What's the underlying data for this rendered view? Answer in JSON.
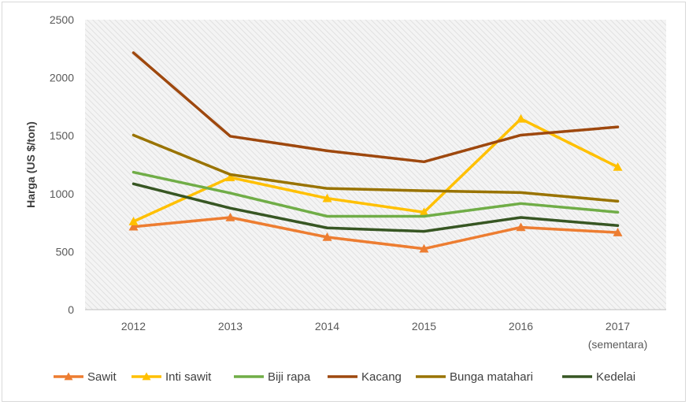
{
  "chart_data": {
    "type": "line",
    "title": "",
    "xlabel": "",
    "ylabel": "Harga (US $/ton)",
    "categories": [
      "2012",
      "2013",
      "2014",
      "2015",
      "2016",
      "2017"
    ],
    "category_sublabels": [
      "",
      "",
      "",
      "",
      "",
      "(sementara)"
    ],
    "ylim": [
      0,
      2500
    ],
    "yticks": [
      0,
      500,
      1000,
      1500,
      2000,
      2500
    ],
    "grid": false,
    "background": "hatched",
    "legend_position": "bottom",
    "series": [
      {
        "name": "Sawit",
        "color": "#ED7D31",
        "marker": "triangle",
        "values": [
          715,
          795,
          625,
          525,
          710,
          665
        ]
      },
      {
        "name": "Inti sawit",
        "color": "#FFC000",
        "marker": "triangle",
        "values": [
          760,
          1140,
          960,
          840,
          1645,
          1230
        ]
      },
      {
        "name": "Biji rapa",
        "color": "#70AD47",
        "marker": "none",
        "values": [
          1185,
          1005,
          805,
          805,
          915,
          840
        ]
      },
      {
        "name": "Kacang",
        "color": "#9E480E",
        "marker": "none",
        "values": [
          2215,
          1495,
          1370,
          1275,
          1505,
          1575
        ]
      },
      {
        "name": "Bunga matahari",
        "color": "#997300",
        "marker": "none",
        "values": [
          1505,
          1165,
          1045,
          1025,
          1010,
          935
        ]
      },
      {
        "name": "Kedelai",
        "color": "#375623",
        "marker": "none",
        "values": [
          1085,
          875,
          705,
          675,
          795,
          725
        ]
      }
    ]
  }
}
